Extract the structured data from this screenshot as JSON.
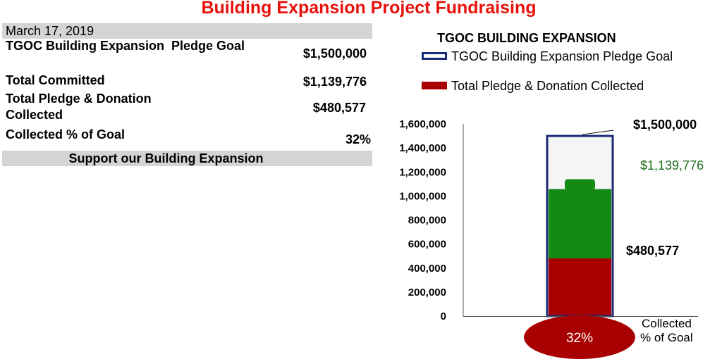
{
  "title": "Building Expansion Project Fundraising",
  "table": {
    "date": "March 17, 2019",
    "rows": [
      {
        "label": "TGOC Building Expansion  Pledge Goal",
        "value": "$1,500,000"
      },
      {
        "label": "Total Committed",
        "value": "$1,139,776"
      },
      {
        "label": "Total Pledge & Donation Collected",
        "value": "$480,577"
      },
      {
        "label": "Collected % of Goal",
        "value": "32%"
      }
    ],
    "support_text": "Support our Building Expansion"
  },
  "colors": {
    "title": "#e8120c",
    "goal_outline": "#1c2a7a",
    "committed": "#138a13",
    "collected": "#a80000",
    "committed_label": "#1a6e1a",
    "table_band": "#d4d4d4"
  },
  "chart_data": {
    "type": "bar",
    "title": "TGOC BUILDING EXPANSION",
    "ylim": [
      0,
      1600000
    ],
    "yticks": [
      "0",
      "200,000",
      "400,000",
      "600,000",
      "800,000",
      "1,000,000",
      "1,200,000",
      "1,400,000",
      "1,600,000"
    ],
    "series": [
      {
        "name": "TGOC Building Expansion  Pledge Goal",
        "value": 1500000,
        "label": "$1,500,000"
      },
      {
        "name": "Total Pledge & Donation Collected",
        "value": 480577,
        "label": "$480,577"
      }
    ],
    "committed": {
      "value": 1139776,
      "label": "$1,139,776"
    },
    "bulb_label": "32%",
    "bulb_caption": [
      "Collected",
      "% of Goal"
    ]
  }
}
